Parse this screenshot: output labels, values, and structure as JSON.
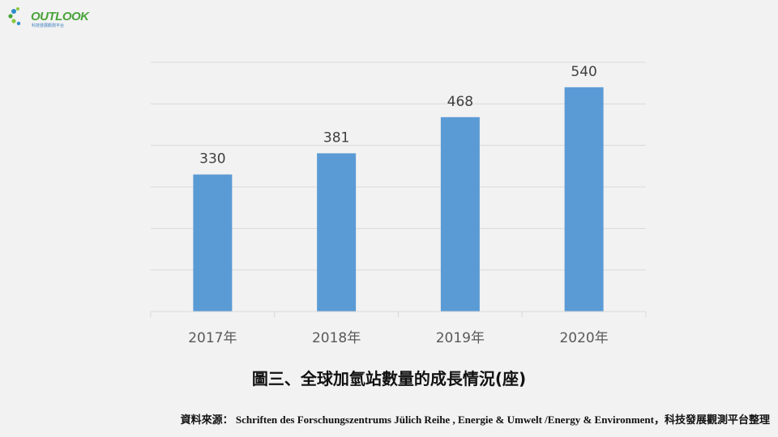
{
  "logo": {
    "text": "OUTLOOK",
    "subtitle": "科技發展觀測平台"
  },
  "colors": {
    "bar": "#5b9bd5",
    "grid": "#d9d9d9",
    "background": "#f2f2f2"
  },
  "chart_data": {
    "type": "bar",
    "title": "圖三、全球加氫站數量的成長情況(座)",
    "categories": [
      "2017年",
      "2018年",
      "2019年",
      "2020年"
    ],
    "values": [
      330,
      381,
      468,
      540
    ],
    "ylim": [
      0,
      600
    ],
    "grid": true,
    "xlabel": "",
    "ylabel": ""
  },
  "source": {
    "label": "資料來源：",
    "text": "Schriften des Forschungszentrums Jülich Reihe , Energie & Umwelt /Energy & Environment，科技發展觀測平台整理"
  }
}
